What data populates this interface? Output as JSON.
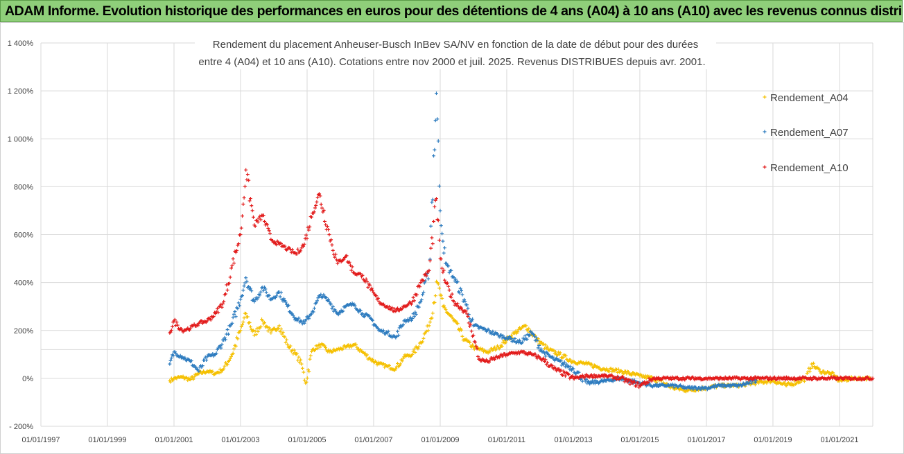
{
  "header": {
    "banner": "ADAM Informe. Evolution historique des performances en euros pour des détentions de 4 ans (A04) à 10 ans (A10) avec les revenus connus distribués"
  },
  "chart_data": {
    "type": "scatter",
    "title_line1": "Rendement du placement Anheuser-Busch InBev SA/NV en fonction de la date de début pour des durées",
    "title_line2": "entre 4 (A04) et 10 ans (A10).  Cotations entre nov 2000 et juil. 2025. Revenus DISTRIBUES depuis avr. 2001.",
    "x_axis": {
      "type": "date",
      "range": [
        "1997-01-01",
        "2022-03-01"
      ],
      "tick_labels": [
        "01/01/1997",
        "01/01/1999",
        "01/01/2001",
        "01/01/2003",
        "01/01/2005",
        "01/01/2007",
        "01/01/2009",
        "01/01/2011",
        "01/01/2013",
        "01/01/2015",
        "01/01/2017",
        "01/01/2019",
        "01/01/2021"
      ]
    },
    "y_axis": {
      "unit": "%",
      "range": [
        -200,
        1400
      ],
      "ticks": [
        -200,
        0,
        200,
        400,
        600,
        800,
        1000,
        1200,
        1400
      ],
      "tick_labels": [
        "- 200%",
        "0%",
        "200%",
        "400%",
        "600%",
        "800%",
        "1 000%",
        "1 200%",
        "1 400%"
      ]
    },
    "grid": true,
    "legend_position": "right",
    "marker": "+",
    "series": [
      {
        "name": "Rendement_A04",
        "color": "#f5c000",
        "points": [
          [
            "2000-11-15",
            -10
          ],
          [
            "2001-01-01",
            0
          ],
          [
            "2001-04-01",
            5
          ],
          [
            "2001-07-01",
            -5
          ],
          [
            "2001-10-01",
            20
          ],
          [
            "2002-01-01",
            30
          ],
          [
            "2002-04-01",
            20
          ],
          [
            "2002-07-01",
            40
          ],
          [
            "2002-10-01",
            100
          ],
          [
            "2003-01-01",
            200
          ],
          [
            "2003-03-01",
            270
          ],
          [
            "2003-06-01",
            180
          ],
          [
            "2003-09-01",
            240
          ],
          [
            "2003-12-01",
            190
          ],
          [
            "2004-03-01",
            220
          ],
          [
            "2004-06-01",
            140
          ],
          [
            "2004-09-01",
            100
          ],
          [
            "2004-11-01",
            60
          ],
          [
            "2004-12-15",
            -20
          ],
          [
            "2005-03-01",
            120
          ],
          [
            "2005-06-01",
            140
          ],
          [
            "2005-09-01",
            110
          ],
          [
            "2005-12-01",
            120
          ],
          [
            "2006-03-01",
            130
          ],
          [
            "2006-06-01",
            140
          ],
          [
            "2006-09-01",
            110
          ],
          [
            "2006-12-01",
            80
          ],
          [
            "2007-03-01",
            60
          ],
          [
            "2007-06-01",
            50
          ],
          [
            "2007-09-01",
            40
          ],
          [
            "2007-12-01",
            90
          ],
          [
            "2008-03-01",
            100
          ],
          [
            "2008-06-01",
            150
          ],
          [
            "2008-09-01",
            220
          ],
          [
            "2008-12-01",
            400
          ],
          [
            "2009-02-01",
            300
          ],
          [
            "2009-06-01",
            240
          ],
          [
            "2009-10-01",
            160
          ],
          [
            "2010-01-01",
            130
          ],
          [
            "2010-06-01",
            110
          ],
          [
            "2010-10-01",
            130
          ],
          [
            "2011-01-01",
            160
          ],
          [
            "2011-04-01",
            190
          ],
          [
            "2011-08-01",
            220
          ],
          [
            "2011-12-01",
            160
          ],
          [
            "2012-04-01",
            120
          ],
          [
            "2012-08-01",
            100
          ],
          [
            "2013-01-01",
            70
          ],
          [
            "2013-06-01",
            60
          ],
          [
            "2013-12-01",
            40
          ],
          [
            "2014-06-01",
            30
          ],
          [
            "2015-01-01",
            10
          ],
          [
            "2015-06-01",
            0
          ],
          [
            "2016-01-01",
            -40
          ],
          [
            "2016-06-01",
            -50
          ],
          [
            "2017-01-01",
            -40
          ],
          [
            "2017-06-01",
            -30
          ],
          [
            "2018-01-01",
            -30
          ],
          [
            "2018-06-01",
            -20
          ],
          [
            "2019-01-01",
            -10
          ],
          [
            "2019-06-01",
            -30
          ],
          [
            "2020-01-01",
            0
          ],
          [
            "2020-03-01",
            60
          ],
          [
            "2020-06-01",
            30
          ],
          [
            "2020-10-01",
            20
          ],
          [
            "2021-01-01",
            -10
          ],
          [
            "2021-06-01",
            0
          ],
          [
            "2021-12-01",
            0
          ]
        ]
      },
      {
        "name": "Rendement_A07",
        "color": "#2c7bbf",
        "points": [
          [
            "2000-11-15",
            60
          ],
          [
            "2001-01-01",
            110
          ],
          [
            "2001-04-01",
            90
          ],
          [
            "2001-07-01",
            70
          ],
          [
            "2001-10-01",
            30
          ],
          [
            "2002-01-01",
            90
          ],
          [
            "2002-04-01",
            100
          ],
          [
            "2002-07-01",
            160
          ],
          [
            "2002-10-01",
            230
          ],
          [
            "2003-01-01",
            330
          ],
          [
            "2003-03-01",
            420
          ],
          [
            "2003-06-01",
            320
          ],
          [
            "2003-09-01",
            380
          ],
          [
            "2003-12-01",
            330
          ],
          [
            "2004-03-01",
            360
          ],
          [
            "2004-06-01",
            300
          ],
          [
            "2004-09-01",
            250
          ],
          [
            "2004-12-01",
            230
          ],
          [
            "2005-03-01",
            280
          ],
          [
            "2005-06-01",
            350
          ],
          [
            "2005-09-01",
            320
          ],
          [
            "2005-12-01",
            270
          ],
          [
            "2006-03-01",
            300
          ],
          [
            "2006-06-01",
            310
          ],
          [
            "2006-09-01",
            270
          ],
          [
            "2006-12-01",
            250
          ],
          [
            "2007-03-01",
            200
          ],
          [
            "2007-06-01",
            190
          ],
          [
            "2007-09-01",
            170
          ],
          [
            "2007-12-01",
            240
          ],
          [
            "2008-03-01",
            250
          ],
          [
            "2008-06-01",
            320
          ],
          [
            "2008-09-01",
            450
          ],
          [
            "2008-11-20",
            1190
          ],
          [
            "2009-01-01",
            700
          ],
          [
            "2009-03-01",
            480
          ],
          [
            "2009-06-01",
            420
          ],
          [
            "2009-10-01",
            320
          ],
          [
            "2010-01-01",
            220
          ],
          [
            "2010-06-01",
            200
          ],
          [
            "2010-10-01",
            180
          ],
          [
            "2011-01-01",
            170
          ],
          [
            "2011-06-01",
            150
          ],
          [
            "2011-10-01",
            190
          ],
          [
            "2012-02-01",
            110
          ],
          [
            "2012-06-01",
            80
          ],
          [
            "2013-01-01",
            40
          ],
          [
            "2013-06-01",
            -20
          ],
          [
            "2014-01-01",
            -10
          ],
          [
            "2014-06-01",
            0
          ],
          [
            "2015-01-01",
            -20
          ],
          [
            "2015-06-01",
            -30
          ],
          [
            "2016-01-01",
            -30
          ],
          [
            "2016-06-01",
            -40
          ],
          [
            "2017-01-01",
            -40
          ],
          [
            "2017-06-01",
            -30
          ],
          [
            "2018-01-01",
            -30
          ],
          [
            "2018-07-01",
            -10
          ]
        ]
      },
      {
        "name": "Rendement_A10",
        "color": "#e21a1a",
        "points": [
          [
            "2000-11-15",
            190
          ],
          [
            "2001-01-01",
            240
          ],
          [
            "2001-04-01",
            200
          ],
          [
            "2001-07-01",
            210
          ],
          [
            "2001-10-01",
            230
          ],
          [
            "2002-01-01",
            240
          ],
          [
            "2002-04-01",
            270
          ],
          [
            "2002-07-01",
            320
          ],
          [
            "2002-10-01",
            470
          ],
          [
            "2003-01-01",
            600
          ],
          [
            "2003-03-01",
            870
          ],
          [
            "2003-06-01",
            640
          ],
          [
            "2003-09-01",
            680
          ],
          [
            "2003-12-01",
            580
          ],
          [
            "2004-03-01",
            560
          ],
          [
            "2004-06-01",
            540
          ],
          [
            "2004-09-01",
            520
          ],
          [
            "2004-12-01",
            560
          ],
          [
            "2005-03-01",
            690
          ],
          [
            "2005-05-15",
            770
          ],
          [
            "2005-09-01",
            600
          ],
          [
            "2005-12-01",
            480
          ],
          [
            "2006-03-01",
            510
          ],
          [
            "2006-06-01",
            440
          ],
          [
            "2006-09-01",
            430
          ],
          [
            "2006-12-01",
            370
          ],
          [
            "2007-03-01",
            320
          ],
          [
            "2007-06-01",
            300
          ],
          [
            "2007-09-01",
            280
          ],
          [
            "2007-12-01",
            300
          ],
          [
            "2008-03-01",
            320
          ],
          [
            "2008-06-01",
            400
          ],
          [
            "2008-09-01",
            450
          ],
          [
            "2008-11-20",
            750
          ],
          [
            "2009-01-01",
            500
          ],
          [
            "2009-03-01",
            400
          ],
          [
            "2009-06-01",
            320
          ],
          [
            "2009-10-01",
            280
          ],
          [
            "2010-01-01",
            180
          ],
          [
            "2010-03-01",
            80
          ],
          [
            "2010-06-01",
            70
          ],
          [
            "2010-10-01",
            90
          ],
          [
            "2011-01-01",
            100
          ],
          [
            "2011-06-01",
            110
          ],
          [
            "2011-10-01",
            100
          ],
          [
            "2012-02-01",
            80
          ],
          [
            "2012-06-01",
            40
          ],
          [
            "2013-01-01",
            0
          ],
          [
            "2013-06-01",
            10
          ],
          [
            "2014-01-01",
            10
          ],
          [
            "2014-06-01",
            0
          ],
          [
            "2015-01-01",
            -30
          ],
          [
            "2015-06-01",
            0
          ],
          [
            "2016-01-01",
            0
          ],
          [
            "2017-01-01",
            0
          ],
          [
            "2018-01-01",
            0
          ],
          [
            "2019-01-01",
            0
          ],
          [
            "2020-01-01",
            0
          ],
          [
            "2021-01-01",
            0
          ],
          [
            "2022-01-01",
            0
          ]
        ]
      }
    ]
  }
}
